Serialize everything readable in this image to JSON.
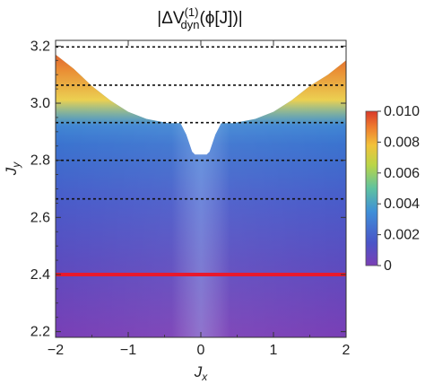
{
  "chart_data": {
    "type": "heatmap",
    "title": {
      "prefix": "|ΔV",
      "superscript": "(1)",
      "subscript": "dyn",
      "suffix": "(ϕ[J])|"
    },
    "xlabel": {
      "main": "J",
      "sub": "x"
    },
    "ylabel": {
      "main": "J",
      "sub": "y"
    },
    "xlim": [
      -2,
      2
    ],
    "ylim": [
      2.18,
      3.22
    ],
    "x_ticks": [
      -2,
      -1,
      0,
      1,
      2
    ],
    "x_tick_labels": [
      "−2",
      "−1",
      "0",
      "1",
      "2"
    ],
    "y_ticks": [
      2.2,
      2.4,
      2.6,
      2.8,
      3.0,
      3.2
    ],
    "y_tick_labels": [
      "2.2",
      "2.4",
      "2.6",
      "2.8",
      "3.0",
      "3.2"
    ],
    "colorbar": {
      "range": [
        0,
        0.01
      ],
      "ticks": [
        0,
        0.002,
        0.004,
        0.006,
        0.008,
        0.01
      ],
      "tick_labels": [
        "0",
        "0.002",
        "0.004",
        "0.006",
        "0.008",
        "0.010"
      ]
    },
    "data_boundary": [
      [
        -2.0,
        3.17
      ],
      [
        -1.75,
        3.12
      ],
      [
        -1.5,
        3.06
      ],
      [
        -1.25,
        3.01
      ],
      [
        -1.0,
        2.97
      ],
      [
        -0.75,
        2.945
      ],
      [
        -0.45,
        2.93
      ],
      [
        -0.28,
        2.93
      ],
      [
        -0.2,
        2.89
      ],
      [
        -0.12,
        2.83
      ],
      [
        -0.08,
        2.82
      ],
      [
        0.08,
        2.82
      ],
      [
        0.12,
        2.83
      ],
      [
        0.2,
        2.89
      ],
      [
        0.28,
        2.93
      ],
      [
        0.45,
        2.93
      ],
      [
        0.75,
        2.945
      ],
      [
        1.0,
        2.97
      ],
      [
        1.25,
        3.01
      ],
      [
        1.5,
        3.06
      ],
      [
        1.75,
        3.1
      ],
      [
        2.0,
        3.15
      ]
    ],
    "dashed_lines_y": [
      3.197,
      3.063,
      2.932,
      2.8,
      2.665
    ],
    "highlight_line_y": 2.4,
    "colors": {
      "highlight": "#e8192c",
      "dashed": "#111111",
      "frame": "#333333"
    }
  }
}
